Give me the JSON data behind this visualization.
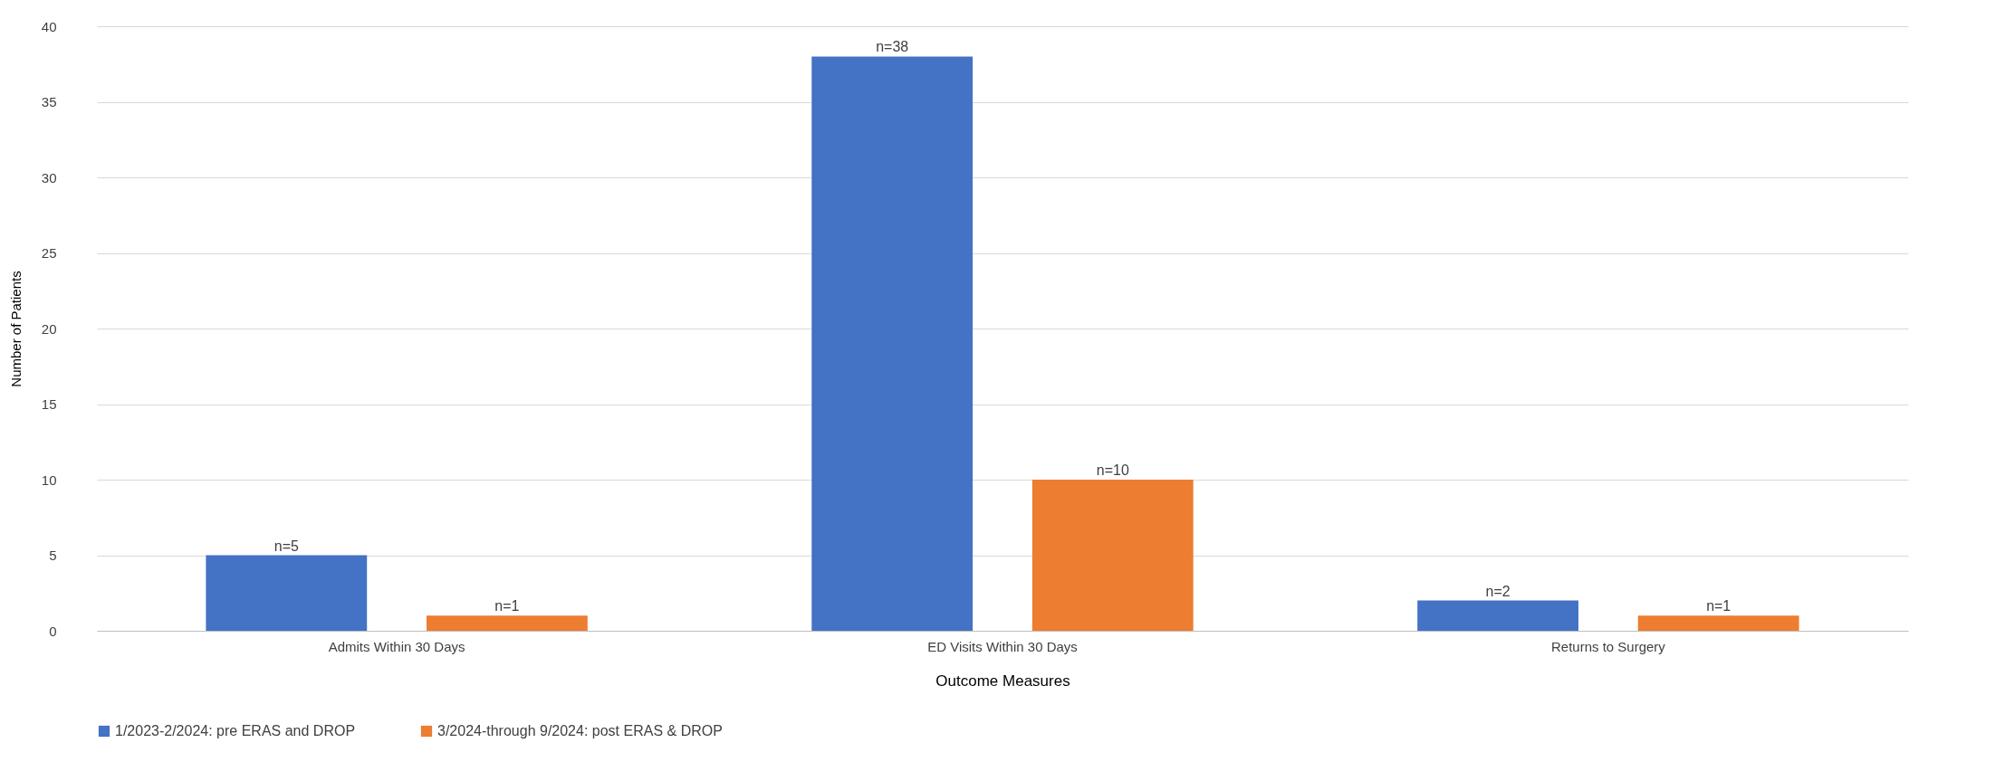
{
  "chart_data": {
    "type": "bar",
    "xlabel": "Outcome Measures",
    "ylabel": "Number of Patients",
    "categories": [
      "Admits Within 30 Days",
      "ED Visits Within 30 Days",
      "Returns to Surgery"
    ],
    "series": [
      {
        "name": "1/2023-2/2024: pre ERAS and DROP",
        "color": "#4472c4",
        "values": [
          5,
          38,
          2
        ],
        "value_labels": [
          "n=5",
          "n=38",
          "n=2"
        ]
      },
      {
        "name": "3/2024-through 9/2024: post ERAS & DROP",
        "color": "#ed7d31",
        "values": [
          1,
          10,
          1
        ],
        "value_labels": [
          "n=1",
          "n=10",
          "n=1"
        ]
      }
    ],
    "ylim": [
      0,
      40
    ],
    "yticks": [
      0,
      5,
      10,
      15,
      20,
      25,
      30,
      35,
      40
    ],
    "grid": "y",
    "legend": "bottom"
  }
}
